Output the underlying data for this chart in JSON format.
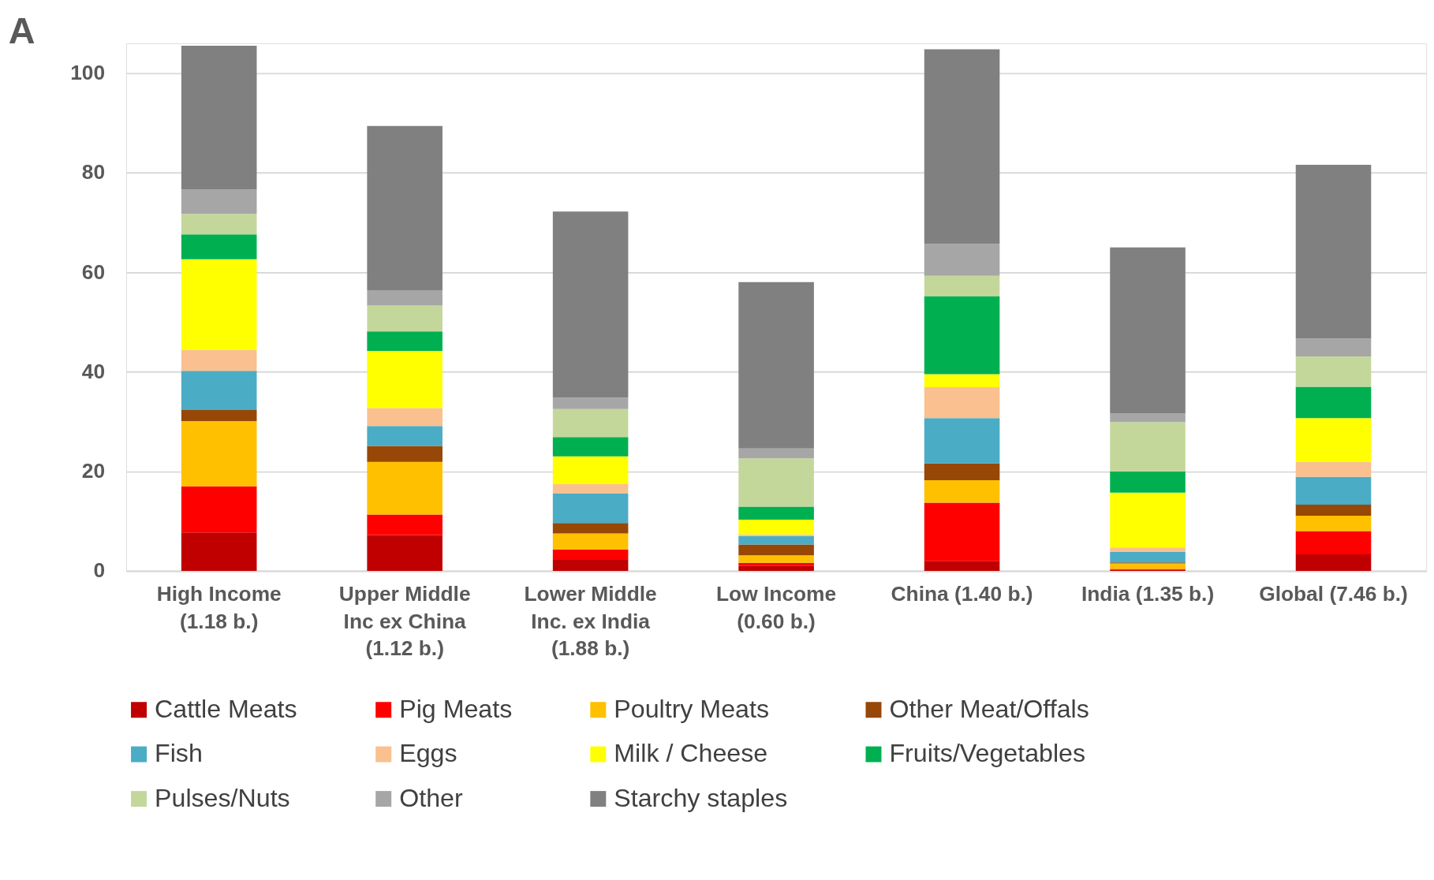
{
  "chart_data": {
    "type": "bar",
    "stacked": true,
    "annotations": [
      "A"
    ],
    "categories": [
      "High Income\n(1.18 b.)",
      "Upper Middle\nInc ex China\n(1.12 b.)",
      "Lower Middle\nInc. ex India\n(1.88 b.)",
      "Low Income\n(0.60 b.)",
      "China (1.40 b.)",
      "India (1.35 b.)",
      "Global (7.46 b.)"
    ],
    "series": [
      {
        "name": "Cattle Meats",
        "color": "#c00000",
        "values": [
          7.7,
          7.2,
          2.2,
          1.0,
          2.0,
          0.2,
          3.3
        ]
      },
      {
        "name": "Pig Meats",
        "color": "#ff0000",
        "values": [
          9.3,
          4.1,
          2.1,
          0.6,
          11.7,
          0.2,
          4.7
        ]
      },
      {
        "name": "Poultry Meats",
        "color": "#ffc000",
        "values": [
          13.1,
          10.6,
          3.2,
          1.5,
          4.5,
          1.1,
          3.1
        ]
      },
      {
        "name": "Other Meat/Offals",
        "color": "#974706",
        "values": [
          2.2,
          3.2,
          2.1,
          2.2,
          3.4,
          0.2,
          2.2
        ]
      },
      {
        "name": "Fish",
        "color": "#4bacc6",
        "values": [
          7.9,
          4.0,
          6.0,
          1.7,
          9.1,
          2.1,
          5.6
        ]
      },
      {
        "name": "Eggs",
        "color": "#fac090",
        "values": [
          4.2,
          3.6,
          1.8,
          0.3,
          6.2,
          0.9,
          3.0
        ]
      },
      {
        "name": "Milk / Cheese",
        "color": "#ffff00",
        "values": [
          18.2,
          11.5,
          5.6,
          3.0,
          2.6,
          11.0,
          8.8
        ]
      },
      {
        "name": "Fruits/Vegetables",
        "color": "#00b050",
        "values": [
          5.0,
          3.9,
          3.9,
          2.6,
          15.7,
          4.3,
          6.3
        ]
      },
      {
        "name": "Pulses/Nuts",
        "color": "#c4d79b",
        "values": [
          4.1,
          5.2,
          5.6,
          9.7,
          4.1,
          9.9,
          6.1
        ]
      },
      {
        "name": "Other",
        "color": "#a6a6a6",
        "values": [
          4.9,
          3.1,
          2.3,
          2.0,
          6.4,
          1.7,
          3.6
        ]
      },
      {
        "name": "Starchy staples",
        "color": "#808080",
        "values": [
          28.9,
          33.0,
          37.4,
          33.4,
          39.1,
          33.4,
          34.9
        ]
      }
    ],
    "ylim": [
      0,
      106
    ],
    "yticks": [
      0,
      20,
      40,
      60,
      80,
      100
    ],
    "grid": "y",
    "legend": "bottom"
  }
}
